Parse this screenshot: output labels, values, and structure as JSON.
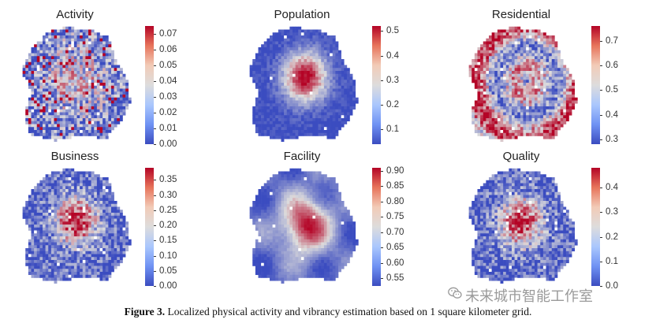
{
  "figure": {
    "caption_label": "Figure 3.",
    "caption_text": " Localized physical activity and vibrancy estimation based on 1 square kilometer grid.",
    "watermark_text": "未来城市智能工作室",
    "watermark_icon": "wechat-icon"
  },
  "colormap": {
    "name": "coolwarm",
    "low": "#3b4cc0",
    "mid": "#dddcdc",
    "high": "#b40426"
  },
  "chart_data": [
    {
      "type": "heatmap",
      "title": "Activity",
      "colorbar_ticks": [
        "0.00",
        "0.01",
        "0.02",
        "0.03",
        "0.04",
        "0.05",
        "0.06",
        "0.07"
      ],
      "range": [
        0,
        0.075
      ],
      "pattern": "scattered"
    },
    {
      "type": "heatmap",
      "title": "Population",
      "colorbar_ticks": [
        "0.1",
        "0.2",
        "0.3",
        "0.4",
        "0.5"
      ],
      "range": [
        0.04,
        0.52
      ],
      "pattern": "central"
    },
    {
      "type": "heatmap",
      "title": "Residential",
      "colorbar_ticks": [
        "0.3",
        "0.4",
        "0.5",
        "0.6",
        "0.7"
      ],
      "range": [
        0.28,
        0.76
      ],
      "pattern": "ring"
    },
    {
      "type": "heatmap",
      "title": "Business",
      "colorbar_ticks": [
        "0.00",
        "0.05",
        "0.10",
        "0.15",
        "0.20",
        "0.25",
        "0.30",
        "0.35"
      ],
      "range": [
        0,
        0.39
      ],
      "pattern": "central-noisy"
    },
    {
      "type": "heatmap",
      "title": "Facility",
      "colorbar_ticks": [
        "0.55",
        "0.60",
        "0.65",
        "0.70",
        "0.75",
        "0.80",
        "0.85",
        "0.90"
      ],
      "range": [
        0.525,
        0.91
      ],
      "pattern": "central-smooth"
    },
    {
      "type": "heatmap",
      "title": "Quality",
      "colorbar_ticks": [
        "0.0",
        "0.1",
        "0.2",
        "0.3",
        "0.4"
      ],
      "range": [
        0,
        0.48
      ],
      "pattern": "central-noisy"
    }
  ]
}
